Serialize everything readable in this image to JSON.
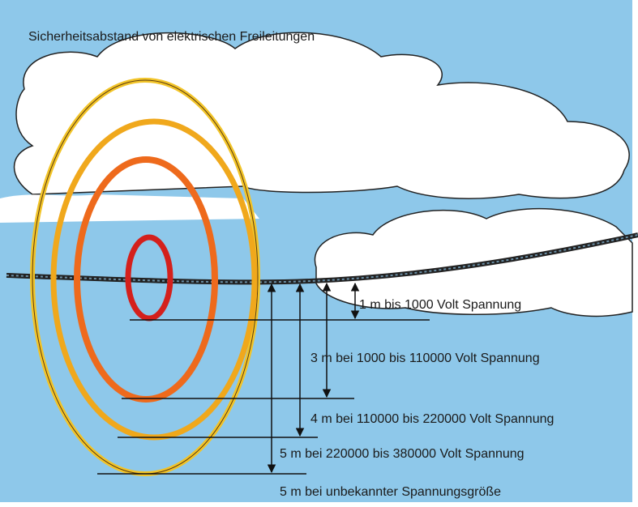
{
  "title": "Sicherheitsabstand von elektrischen Freileitungen",
  "labels": [
    "1 m bis 1000 Volt Spannung",
    "3 m bei 1000 bis 110000 Volt Spannung",
    "4 m bei 110000 bis 220000 Volt Spannung",
    "5 m bei 220000 bis 380000 Volt Spannung",
    "5 m bei unbekannter Spannungsgröße"
  ]
}
